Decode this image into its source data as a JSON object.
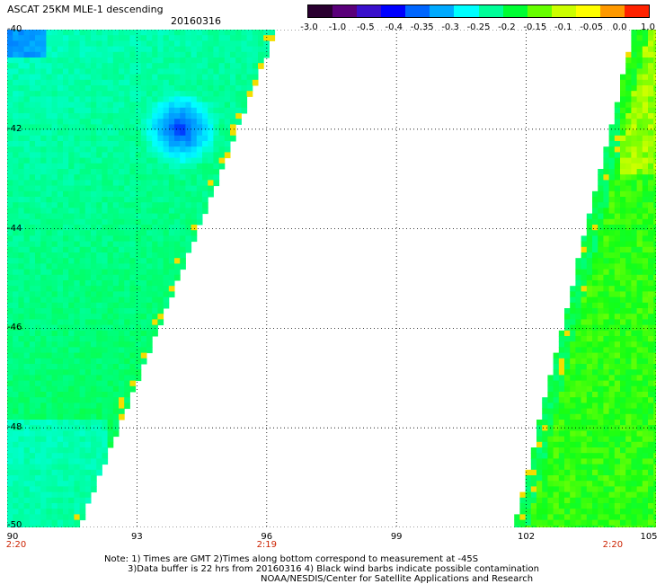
{
  "header": {
    "title": "ASCAT 25KM MLE-1 descending",
    "date": "20160316"
  },
  "colorbar": {
    "labels": [
      "-3.0",
      "-1.0",
      "-0.5",
      "-0.4",
      "-0.35",
      "-0.3",
      "-0.25",
      "-0.2",
      "-0.15",
      "-0.1",
      "-0.05",
      "0.0",
      "1.0"
    ],
    "colors": [
      "#2a0030",
      "#5a007a",
      "#3a10cc",
      "#0000ff",
      "#0066ff",
      "#00aaff",
      "#00ffff",
      "#00ff99",
      "#00ff33",
      "#66ff00",
      "#ccff00",
      "#ffff00",
      "#ff9900",
      "#ff2200"
    ]
  },
  "map": {
    "lon_min": 90,
    "lon_max": 105,
    "lat_min": -50,
    "lat_max": -40,
    "x_ticks": [
      "90",
      "93",
      "96",
      "99",
      "102",
      "105"
    ],
    "y_ticks": [
      "-40",
      "-42",
      "-44",
      "-46",
      "-48",
      "-50"
    ],
    "times": [
      {
        "lon": 90,
        "label": "2:20"
      },
      {
        "lon": 96,
        "label": "2:19"
      },
      {
        "lon": 104,
        "label": "2:20"
      }
    ],
    "grid": true
  },
  "notes": {
    "line1": "Note: 1) Times are GMT 2)Times along bottom correspond to measurement at -45S",
    "line2": "3)Data buffer is 22 hrs from 20160316 4) Black wind barbs indicate possible contamination",
    "line3": "NOAA/NESDIS/Center for Satellite Applications and Research"
  }
}
